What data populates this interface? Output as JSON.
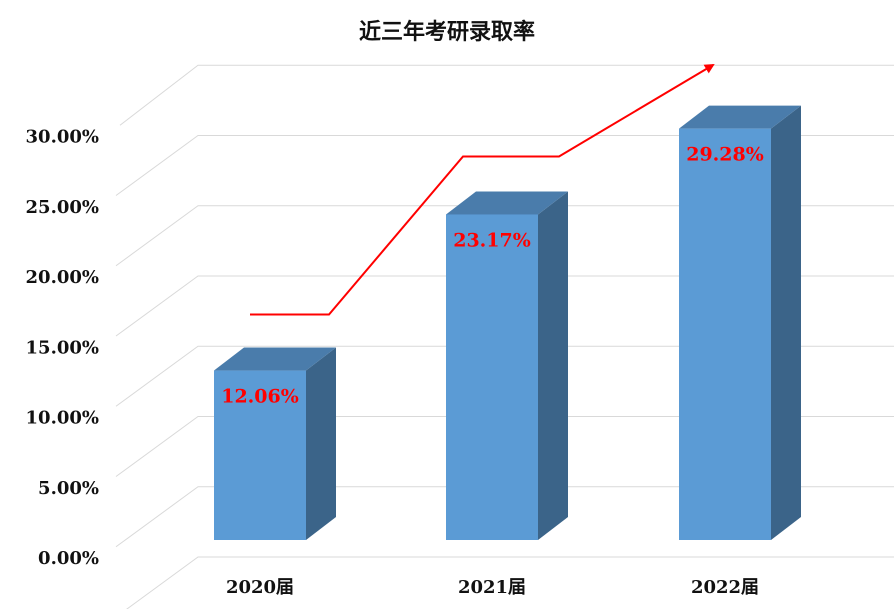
{
  "chart_data": {
    "type": "bar",
    "title": "近三年考研录取率",
    "xlabel": "",
    "ylabel": "",
    "categories": [
      "2020届",
      "2021届",
      "2022届"
    ],
    "values": [
      12.06,
      23.17,
      29.28
    ],
    "data_labels": [
      "12.06%",
      "23.17%",
      "29.28%"
    ],
    "ylim": [
      0,
      30
    ],
    "y_ticks": [
      0,
      5,
      10,
      15,
      20,
      25,
      30
    ],
    "y_tick_labels": [
      "0.00%",
      "5.00%",
      "10.00%",
      "15.00%",
      "20.00%",
      "25.00%",
      "30.00%"
    ],
    "grid": true,
    "legend": "none",
    "style": "3d-column",
    "colors": {
      "bar_front": "#5b9bd5",
      "bar_side": "#3b6489",
      "bar_top": "#4a7cab",
      "data_label": "#ff0000",
      "trend_arrow": "#ff0000",
      "grid": "#d9d9d9"
    }
  }
}
